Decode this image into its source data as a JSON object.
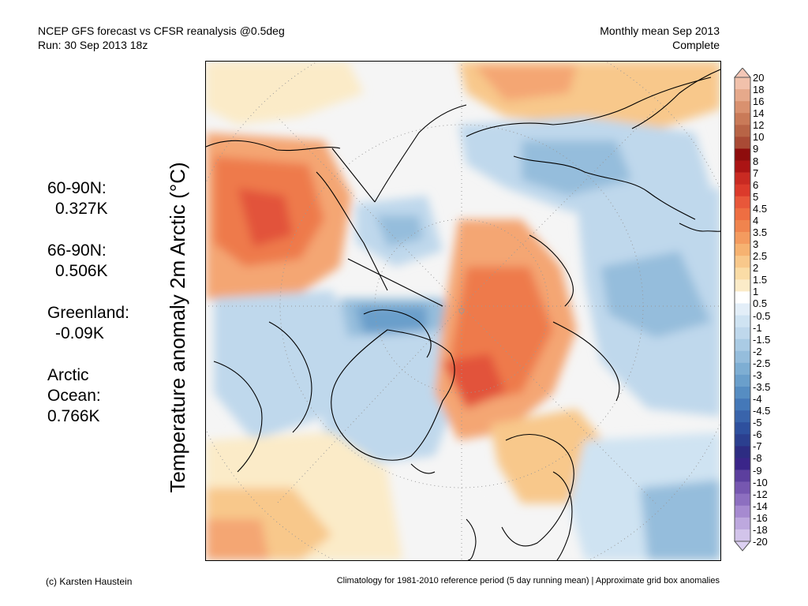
{
  "header": {
    "title_line1": "NCEP GFS forecast vs CFSR reanalysis @0.5deg",
    "title_line2": "Run: 30 Sep 2013 18z",
    "right_line1": "Monthly mean Sep 2013",
    "right_line2": "Complete"
  },
  "y_axis_label": "Temperature anomaly 2m Arctic (°C)",
  "stats": [
    {
      "label": "60-90N:",
      "value": "0.327K"
    },
    {
      "label": "66-90N:",
      "value": "0.506K"
    },
    {
      "label": "Greenland:",
      "value": "-0.09K"
    },
    {
      "label": "Arctic Ocean:",
      "label_line1": "Arctic",
      "label_line2": "Ocean:",
      "value": "0.766K"
    }
  ],
  "colorbar": {
    "ticks": [
      "20",
      "18",
      "16",
      "14",
      "12",
      "10",
      "9",
      "8",
      "7",
      "6",
      "5",
      "4.5",
      "4",
      "3.5",
      "3",
      "2.5",
      "2",
      "1.5",
      "1",
      "0.5",
      "-0.5",
      "-1",
      "-1.5",
      "-2",
      "-2.5",
      "-3",
      "-3.5",
      "-4",
      "-4.5",
      "-5",
      "-6",
      "-7",
      "-8",
      "-9",
      "-10",
      "-12",
      "-14",
      "-16",
      "-18",
      "-20"
    ],
    "colors": [
      "#f1c1ab",
      "#e6a98b",
      "#d9916f",
      "#c97a58",
      "#b86446",
      "#a94a35",
      "#8e0c0c",
      "#ab1414",
      "#c92a22",
      "#db3a2b",
      "#e8573a",
      "#ee6e42",
      "#f0844e",
      "#f49b5f",
      "#f6b271",
      "#f8c88b",
      "#fadca6",
      "#fbebc8",
      "#ffffff",
      "#e3eef8",
      "#cfe3f2",
      "#bfd8ec",
      "#aacbe4",
      "#95bddc",
      "#7eaed3",
      "#6a9fcb",
      "#568dc2",
      "#4478b8",
      "#3964ab",
      "#2e509e",
      "#2b3f8f",
      "#2d2c82",
      "#3a2589",
      "#5c3f9e",
      "#7657b0",
      "#8d6fc0",
      "#a68ad0",
      "#bda8de",
      "#d2c4ea"
    ],
    "low_color": "#dcd0f2",
    "high_color": "#f4c7b7"
  },
  "map": {
    "ocean_background": "#f5f5f5",
    "warm_colors": [
      "#fbebc8",
      "#f8c88b",
      "#f4a673",
      "#ee7a4b",
      "#e2523a"
    ],
    "cool_colors": [
      "#e3eef8",
      "#bfd8ec",
      "#95bddc",
      "#6a9fcb",
      "#3964ab"
    ]
  },
  "footer": {
    "left": "(c) Karsten Haustein",
    "right": "Climatology for 1981-2010 reference period (5 day running mean) | Approximate grid box anomalies"
  }
}
